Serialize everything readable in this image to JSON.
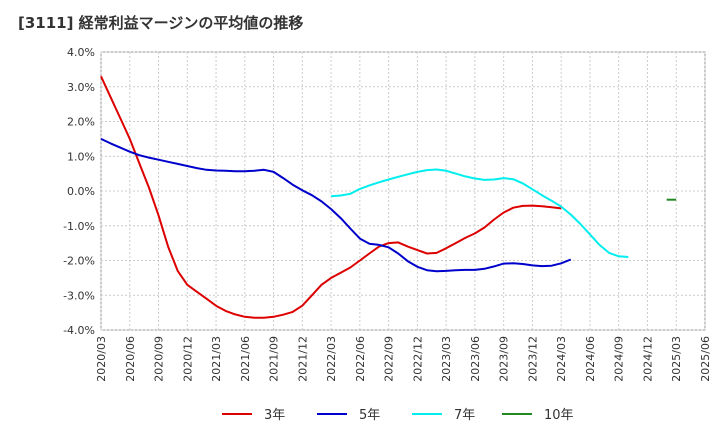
{
  "title": "[3111]  経常利益マージンの平均値の推移",
  "chart_data": {
    "type": "line",
    "title": "[3111]  経常利益マージンの平均値の推移",
    "xlabel": "",
    "ylabel": "",
    "ylim": [
      -4.0,
      4.0
    ],
    "y_ticks": [
      "4.0%",
      "3.0%",
      "2.0%",
      "1.0%",
      "0.0%",
      "-1.0%",
      "-2.0%",
      "-3.0%",
      "-4.0%"
    ],
    "y_tick_values": [
      4,
      3,
      2,
      1,
      0,
      -1,
      -2,
      -3,
      -4
    ],
    "x_ticks": [
      "2020/03",
      "2020/06",
      "2020/09",
      "2020/12",
      "2021/03",
      "2021/06",
      "2021/09",
      "2021/12",
      "2022/03",
      "2022/06",
      "2022/09",
      "2022/12",
      "2023/03",
      "2023/06",
      "2023/09",
      "2023/12",
      "2024/03",
      "2024/06",
      "2024/09",
      "2024/12",
      "2025/03",
      "2025/06"
    ],
    "grid": true,
    "legend_position": "bottom",
    "series": [
      {
        "name": "3年",
        "color": "#dd0000",
        "start": "2020/03",
        "values": [
          3.3,
          2.7,
          2.1,
          1.5,
          0.8,
          0.1,
          -0.7,
          -1.6,
          -2.3,
          -2.7,
          -2.9,
          -3.1,
          -3.3,
          -3.45,
          -3.55,
          -3.62,
          -3.65,
          -3.65,
          -3.62,
          -3.56,
          -3.48,
          -3.3,
          -3.0,
          -2.7,
          -2.5,
          -2.35,
          -2.2,
          -2.0,
          -1.8,
          -1.6,
          -1.5,
          -1.48,
          -1.6,
          -1.7,
          -1.8,
          -1.78,
          -1.65,
          -1.5,
          -1.35,
          -1.22,
          -1.05,
          -0.82,
          -0.62,
          -0.48,
          -0.43,
          -0.42,
          -0.44,
          -0.47,
          -0.5
        ]
      },
      {
        "name": "5年",
        "color": "#0000cc",
        "start": "2020/03",
        "values": [
          1.5,
          1.37,
          1.25,
          1.13,
          1.03,
          0.96,
          0.9,
          0.84,
          0.78,
          0.72,
          0.66,
          0.61,
          0.59,
          0.58,
          0.57,
          0.57,
          0.58,
          0.61,
          0.55,
          0.37,
          0.18,
          0.02,
          -0.12,
          -0.3,
          -0.52,
          -0.78,
          -1.08,
          -1.37,
          -1.52,
          -1.55,
          -1.62,
          -1.8,
          -2.02,
          -2.18,
          -2.28,
          -2.31,
          -2.3,
          -2.28,
          -2.27,
          -2.27,
          -2.24,
          -2.17,
          -2.09,
          -2.08,
          -2.1,
          -2.14,
          -2.16,
          -2.15,
          -2.08,
          -1.97
        ]
      },
      {
        "name": "7年",
        "color": "#00eeee",
        "start": "2022/03",
        "values": [
          -0.15,
          -0.13,
          -0.08,
          0.06,
          0.16,
          0.25,
          0.33,
          0.41,
          0.48,
          0.55,
          0.6,
          0.62,
          0.58,
          0.5,
          0.42,
          0.36,
          0.32,
          0.33,
          0.37,
          0.34,
          0.22,
          0.05,
          -0.12,
          -0.28,
          -0.45,
          -0.68,
          -0.95,
          -1.25,
          -1.55,
          -1.78,
          -1.88,
          -1.9
        ]
      },
      {
        "name": "10年",
        "color": "#228822",
        "start": "2025/02",
        "values": [
          -0.25,
          -0.25
        ]
      }
    ]
  }
}
